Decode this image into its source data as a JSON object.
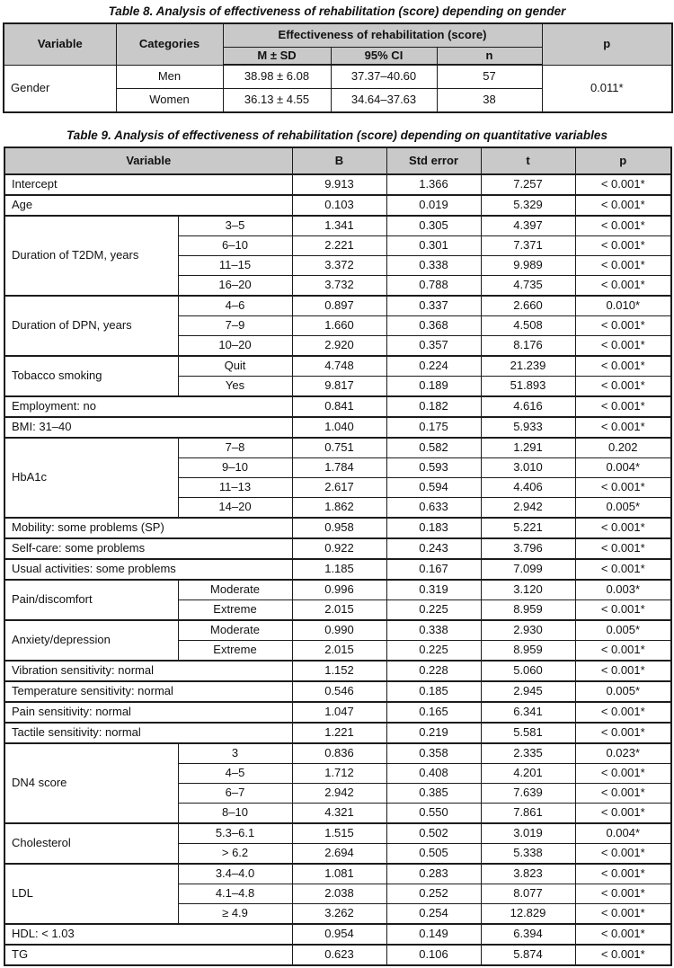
{
  "theme": {
    "header_bg": "#c9c9c9",
    "border_color": "#1c1c1c",
    "text_color": "#111111",
    "page_bg": "#ffffff"
  },
  "table8": {
    "title": "Table 8. Analysis of effectiveness of rehabilitation (score) depending on gender",
    "headers": {
      "variable": "Variable",
      "categories": "Categories",
      "effectiveness": "Effectiveness of rehabilitation (score)",
      "m_sd": "M ± SD",
      "ci": "95% CI",
      "n": "n",
      "p": "p"
    },
    "body": {
      "variable": "Gender",
      "p": "0.011*",
      "rows": [
        {
          "category": "Men",
          "m_sd": "38.98 ± 6.08",
          "ci": "37.37–40.60",
          "n": "57"
        },
        {
          "category": "Women",
          "m_sd": "36.13 ± 4.55",
          "ci": "34.64–37.63",
          "n": "38"
        }
      ]
    }
  },
  "table9": {
    "title": "Table 9. Analysis of effectiveness of rehabilitation (score) depending on quantitative variables",
    "headers": {
      "variable": "Variable",
      "b": "B",
      "std_error": "Std error",
      "t": "t",
      "p": "p"
    },
    "groups": [
      {
        "label": "Intercept",
        "rows": [
          {
            "category": null,
            "b": "9.913",
            "se": "1.366",
            "t": "7.257",
            "p": "< 0.001*"
          }
        ]
      },
      {
        "label": "Age",
        "rows": [
          {
            "category": null,
            "b": "0.103",
            "se": "0.019",
            "t": "5.329",
            "p": "< 0.001*"
          }
        ]
      },
      {
        "label": "Duration of T2DM, years",
        "rows": [
          {
            "category": "3–5",
            "b": "1.341",
            "se": "0.305",
            "t": "4.397",
            "p": "< 0.001*"
          },
          {
            "category": "6–10",
            "b": "2.221",
            "se": "0.301",
            "t": "7.371",
            "p": "< 0.001*"
          },
          {
            "category": "11–15",
            "b": "3.372",
            "se": "0.338",
            "t": "9.989",
            "p": "< 0.001*"
          },
          {
            "category": "16–20",
            "b": "3.732",
            "se": "0.788",
            "t": "4.735",
            "p": "< 0.001*"
          }
        ]
      },
      {
        "label": "Duration of DPN, years",
        "rows": [
          {
            "category": "4–6",
            "b": "0.897",
            "se": "0.337",
            "t": "2.660",
            "p": "0.010*"
          },
          {
            "category": "7–9",
            "b": "1.660",
            "se": "0.368",
            "t": "4.508",
            "p": "< 0.001*"
          },
          {
            "category": "10–20",
            "b": "2.920",
            "se": "0.357",
            "t": "8.176",
            "p": "< 0.001*"
          }
        ]
      },
      {
        "label": "Tobacco smoking",
        "rows": [
          {
            "category": "Quit",
            "b": "4.748",
            "se": "0.224",
            "t": "21.239",
            "p": "< 0.001*"
          },
          {
            "category": "Yes",
            "b": "9.817",
            "se": "0.189",
            "t": "51.893",
            "p": "< 0.001*"
          }
        ]
      },
      {
        "label": "Employment: no",
        "rows": [
          {
            "category": null,
            "b": "0.841",
            "se": "0.182",
            "t": "4.616",
            "p": "< 0.001*"
          }
        ]
      },
      {
        "label": "BMI: 31–40",
        "rows": [
          {
            "category": null,
            "b": "1.040",
            "se": "0.175",
            "t": "5.933",
            "p": "< 0.001*"
          }
        ]
      },
      {
        "label": "HbA1c",
        "rows": [
          {
            "category": "7–8",
            "b": "0.751",
            "se": "0.582",
            "t": "1.291",
            "p": "0.202"
          },
          {
            "category": "9–10",
            "b": "1.784",
            "se": "0.593",
            "t": "3.010",
            "p": "0.004*"
          },
          {
            "category": "11–13",
            "b": "2.617",
            "se": "0.594",
            "t": "4.406",
            "p": "< 0.001*"
          },
          {
            "category": "14–20",
            "b": "1.862",
            "se": "0.633",
            "t": "2.942",
            "p": "0.005*"
          }
        ]
      },
      {
        "label": "Mobility: some problems (SP)",
        "rows": [
          {
            "category": null,
            "b": "0.958",
            "se": "0.183",
            "t": "5.221",
            "p": "< 0.001*"
          }
        ]
      },
      {
        "label": "Self-care: some problems",
        "rows": [
          {
            "category": null,
            "b": "0.922",
            "se": "0.243",
            "t": "3.796",
            "p": "< 0.001*"
          }
        ]
      },
      {
        "label": "Usual activities: some problems",
        "rows": [
          {
            "category": null,
            "b": "1.185",
            "se": "0.167",
            "t": "7.099",
            "p": "< 0.001*"
          }
        ]
      },
      {
        "label": "Pain/discomfort",
        "rows": [
          {
            "category": "Moderate",
            "b": "0.996",
            "se": "0.319",
            "t": "3.120",
            "p": "0.003*"
          },
          {
            "category": "Extreme",
            "b": "2.015",
            "se": "0.225",
            "t": "8.959",
            "p": "< 0.001*"
          }
        ]
      },
      {
        "label": "Anxiety/depression",
        "rows": [
          {
            "category": "Moderate",
            "b": "0.990",
            "se": "0.338",
            "t": "2.930",
            "p": "0.005*"
          },
          {
            "category": "Extreme",
            "b": "2.015",
            "se": "0.225",
            "t": "8.959",
            "p": "< 0.001*"
          }
        ]
      },
      {
        "label": "Vibration sensitivity: normal",
        "rows": [
          {
            "category": null,
            "b": "1.152",
            "se": "0.228",
            "t": "5.060",
            "p": "< 0.001*"
          }
        ]
      },
      {
        "label": "Temperature sensitivity: normal",
        "rows": [
          {
            "category": null,
            "b": "0.546",
            "se": "0.185",
            "t": "2.945",
            "p": "0.005*"
          }
        ]
      },
      {
        "label": "Pain sensitivity: normal",
        "rows": [
          {
            "category": null,
            "b": "1.047",
            "se": "0.165",
            "t": "6.341",
            "p": "< 0.001*"
          }
        ]
      },
      {
        "label": "Tactile sensitivity: normal",
        "rows": [
          {
            "category": null,
            "b": "1.221",
            "se": "0.219",
            "t": "5.581",
            "p": "< 0.001*"
          }
        ]
      },
      {
        "label": "DN4 score",
        "rows": [
          {
            "category": "3",
            "b": "0.836",
            "se": "0.358",
            "t": "2.335",
            "p": "0.023*"
          },
          {
            "category": "4–5",
            "b": "1.712",
            "se": "0.408",
            "t": "4.201",
            "p": "< 0.001*"
          },
          {
            "category": "6–7",
            "b": "2.942",
            "se": "0.385",
            "t": "7.639",
            "p": "< 0.001*"
          },
          {
            "category": "8–10",
            "b": "4.321",
            "se": "0.550",
            "t": "7.861",
            "p": "< 0.001*"
          }
        ]
      },
      {
        "label": "Cholesterol",
        "rows": [
          {
            "category": "5.3–6.1",
            "b": "1.515",
            "se": "0.502",
            "t": "3.019",
            "p": "0.004*"
          },
          {
            "category": "> 6.2",
            "b": "2.694",
            "se": "0.505",
            "t": "5.338",
            "p": "< 0.001*"
          }
        ]
      },
      {
        "label": "LDL",
        "rows": [
          {
            "category": "3.4–4.0",
            "b": "1.081",
            "se": "0.283",
            "t": "3.823",
            "p": "< 0.001*"
          },
          {
            "category": "4.1–4.8",
            "b": "2.038",
            "se": "0.252",
            "t": "8.077",
            "p": "< 0.001*"
          },
          {
            "category": "≥ 4.9",
            "b": "3.262",
            "se": "0.254",
            "t": "12.829",
            "p": "< 0.001*"
          }
        ]
      },
      {
        "label": "HDL: < 1.03",
        "rows": [
          {
            "category": null,
            "b": "0.954",
            "se": "0.149",
            "t": "6.394",
            "p": "< 0.001*"
          }
        ]
      },
      {
        "label": "TG",
        "rows": [
          {
            "category": null,
            "b": "0.623",
            "se": "0.106",
            "t": "5.874",
            "p": "< 0.001*"
          }
        ]
      }
    ]
  }
}
